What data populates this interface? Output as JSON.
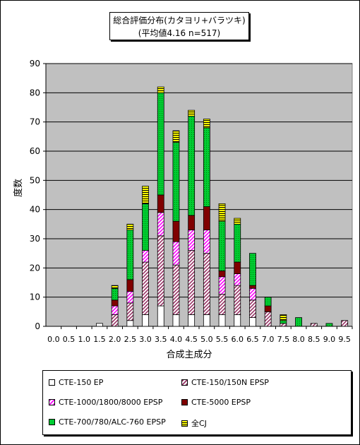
{
  "chart_data": {
    "type": "stacked-bar",
    "title": "総合評価分布(カタヨリ+バラツキ)",
    "subtitle": "(平均値4.16 n=517)",
    "xlabel": "合成主成分",
    "ylabel": "度数",
    "ylim": [
      0,
      90
    ],
    "yticks": [
      0,
      10,
      20,
      30,
      40,
      50,
      60,
      70,
      80,
      90
    ],
    "grid": true,
    "legend_position": "bottom",
    "categories": [
      "0.0",
      "0.5",
      "1.0",
      "1.5",
      "2.0",
      "2.5",
      "3.0",
      "3.5",
      "4.0",
      "4.5",
      "5.0",
      "5.5",
      "6.0",
      "6.5",
      "7.0",
      "7.5",
      "8.0",
      "8.5",
      "9.0",
      "9.5"
    ],
    "series": [
      {
        "name": "CTE-150 EP",
        "color": "#ffffff",
        "pattern": "solid",
        "values": [
          0,
          0,
          0,
          1,
          0,
          2,
          4,
          7,
          4,
          4,
          4,
          4,
          4,
          3,
          0,
          0,
          0,
          0,
          0,
          0
        ]
      },
      {
        "name": "CTE-150/150N EPSP",
        "color": "#993366",
        "pattern": "diagonal",
        "values": [
          0,
          0,
          0,
          0,
          4,
          6,
          18,
          24,
          17,
          22,
          21,
          7,
          10,
          6,
          5,
          1,
          0,
          1,
          0,
          2
        ]
      },
      {
        "name": "CTE-1000/1800/8000 EPSP",
        "color": "#ff00ff",
        "pattern": "diagonal",
        "values": [
          0,
          0,
          0,
          0,
          3,
          4,
          4,
          8,
          8,
          7,
          8,
          6,
          4,
          4,
          0,
          0,
          0,
          0,
          0,
          0
        ]
      },
      {
        "name": "CTE-5000 EPSP",
        "color": "#800000",
        "pattern": "solid",
        "values": [
          0,
          0,
          0,
          0,
          2,
          4,
          0,
          6,
          7,
          5,
          8,
          2,
          4,
          1,
          2,
          0,
          0,
          0,
          0,
          0
        ]
      },
      {
        "name": "CTE-700/780/ALC-760 EPSP",
        "color": "#00cc33",
        "pattern": "dotted",
        "values": [
          0,
          0,
          0,
          0,
          4,
          17,
          16,
          35,
          27,
          34,
          27,
          17,
          13,
          11,
          3,
          1,
          3,
          0,
          1,
          0
        ]
      },
      {
        "name": "全CJ",
        "color": "#ffff00",
        "pattern": "stripe",
        "values": [
          0,
          0,
          0,
          0,
          1,
          2,
          6,
          2,
          4,
          2,
          3,
          6,
          2,
          0,
          0,
          2,
          0,
          0,
          0,
          0
        ]
      }
    ]
  },
  "colors": {
    "plot_bg": "#c0c0c0",
    "grid": "#000000"
  }
}
